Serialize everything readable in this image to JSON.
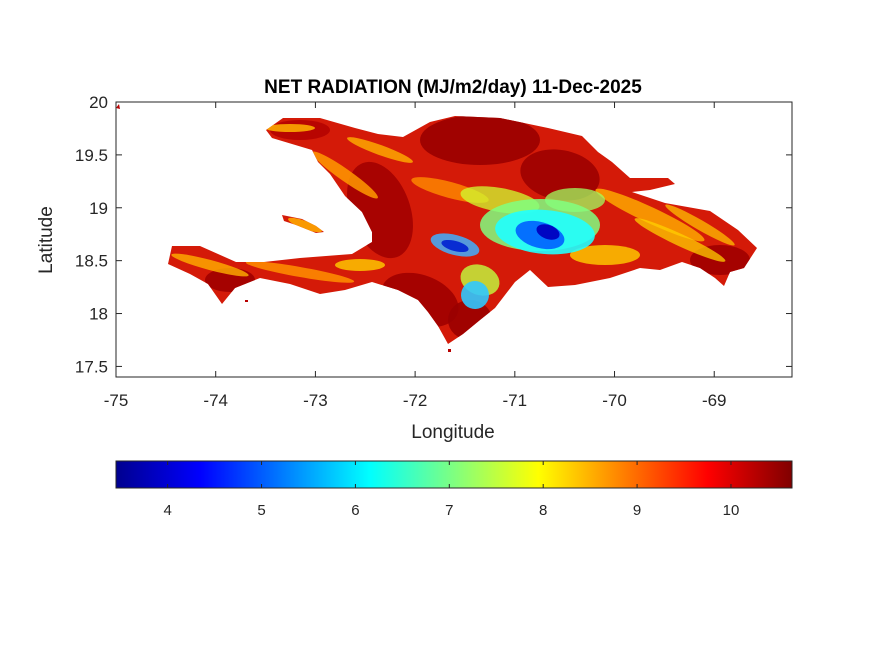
{
  "chart_data": {
    "type": "heatmap",
    "title": "NET RADIATION (MJ/m2/day) 11-Dec-2025",
    "xlabel": "Longitude",
    "ylabel": "Latitude",
    "xlim": [
      -75,
      -68.22
    ],
    "ylim": [
      17.4,
      20
    ],
    "xticks": [
      -75,
      -74,
      -73,
      -72,
      -71,
      -70,
      -69
    ],
    "xtick_labels": [
      "-75",
      "-74",
      "-73",
      "-72",
      "-71",
      "-70",
      "-69"
    ],
    "yticks": [
      17.5,
      18,
      18.5,
      19,
      19.5,
      20
    ],
    "ytick_labels": [
      "17.5",
      "18",
      "18.5",
      "19",
      "19.5",
      "20"
    ],
    "colormap": "jet",
    "clim": [
      3.45,
      10.65
    ],
    "colorbar_ticks": [
      4,
      5,
      6,
      7,
      8,
      9,
      10
    ],
    "colorbar_tick_labels": [
      "4",
      "5",
      "6",
      "7",
      "8",
      "9",
      "10"
    ],
    "colors": {
      "jet": [
        "#00008f",
        "#0000ff",
        "#00ffff",
        "#ffff00",
        "#ff0000",
        "#800000"
      ],
      "axes": "#262626",
      "background": "#ffffff"
    }
  }
}
